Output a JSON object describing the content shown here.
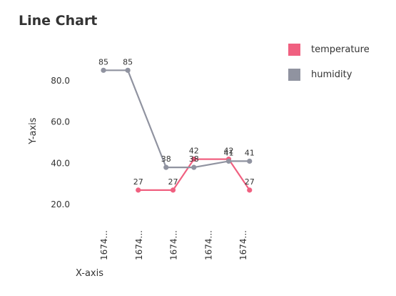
{
  "colors": {
    "temperature": "#f06080",
    "humidity": "#9093a0"
  },
  "chart_data": {
    "type": "line",
    "title": "Line Chart",
    "xlabel": "X-axis",
    "ylabel": "Y-axis",
    "ylim": [
      10,
      100
    ],
    "yticks": [
      "20.0",
      "40.0",
      "60.0",
      "80.0"
    ],
    "x_ticks": [
      "1674...",
      "1674...",
      "1674...",
      "1674...",
      "1674..."
    ],
    "legend_position": "top-right",
    "series": [
      {
        "name": "temperature",
        "key": "temperature",
        "points": [
          [
            1,
            27
          ],
          [
            2,
            27
          ],
          [
            2.6,
            42
          ],
          [
            3.6,
            42
          ],
          [
            4.2,
            27
          ]
        ]
      },
      {
        "name": "humidity",
        "key": "humidity",
        "points": [
          [
            0,
            85
          ],
          [
            0.7,
            85
          ],
          [
            1.8,
            38
          ],
          [
            2.6,
            38
          ],
          [
            3.6,
            41
          ],
          [
            4.2,
            41
          ]
        ]
      }
    ]
  }
}
